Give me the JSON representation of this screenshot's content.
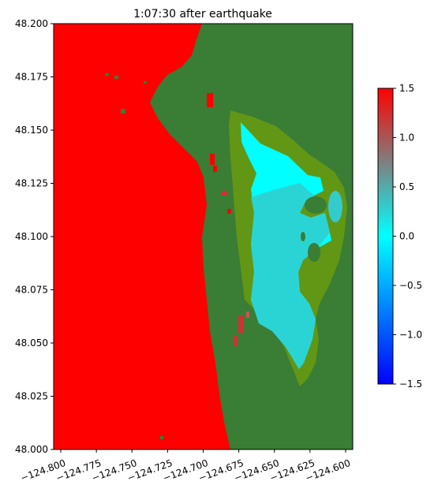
{
  "chart_data": {
    "type": "heatmap",
    "title": "1:07:30 after earthquake",
    "xlabel": "",
    "ylabel": "",
    "xlim": [
      -124.805,
      -124.595
    ],
    "ylim": [
      48.0,
      48.2
    ],
    "x_ticks": [
      -124.8,
      -124.775,
      -124.75,
      -124.725,
      -124.7,
      -124.675,
      -124.65,
      -124.625,
      -124.6
    ],
    "x_tick_labels": [
      "−124.800",
      "−124.775",
      "−124.750",
      "−124.725",
      "−124.700",
      "−124.675",
      "−124.650",
      "−124.625",
      "−124.600"
    ],
    "y_ticks": [
      48.0,
      48.025,
      48.05,
      48.075,
      48.1,
      48.125,
      48.15,
      48.175,
      48.2
    ],
    "y_tick_labels": [
      "48.000",
      "48.025",
      "48.050",
      "48.075",
      "48.100",
      "48.125",
      "48.150",
      "48.175",
      "48.200"
    ],
    "colorbar": {
      "min": -1.5,
      "max": 1.5,
      "ticks": [
        -1.5,
        -1.0,
        -0.5,
        0.0,
        0.5,
        1.0,
        1.5
      ],
      "tick_labels": [
        "−1.5",
        "−1.0",
        "−0.5",
        "0.0",
        "0.5",
        "1.0",
        "1.5"
      ],
      "colors": [
        "#0000ff",
        "#00ffff",
        "#ff0000"
      ]
    },
    "colors": {
      "land": "#3a7d34",
      "shore": "#6a9a10",
      "ocean": "#ff0000",
      "bay_high": "#00ffff",
      "bay_low": "#33cccc"
    }
  }
}
